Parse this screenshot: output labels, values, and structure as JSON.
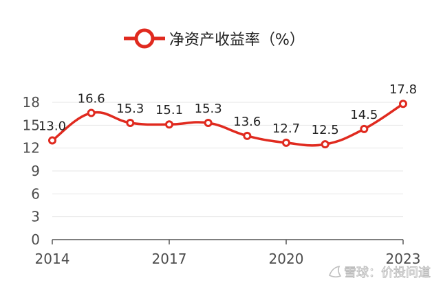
{
  "chart_data": {
    "type": "line",
    "legend_label": "净资产收益率（%）",
    "legend_position": "top-center",
    "x": [
      2014,
      2015,
      2016,
      2017,
      2018,
      2019,
      2020,
      2021,
      2022,
      2023
    ],
    "x_tick_labels": [
      "2014",
      "2017",
      "2020",
      "2023"
    ],
    "x_tick_values": [
      2014,
      2017,
      2020,
      2023
    ],
    "series": [
      {
        "name": "净资产收益率（%）",
        "values": [
          13.0,
          16.6,
          15.3,
          15.1,
          15.3,
          13.6,
          12.7,
          12.5,
          14.5,
          17.8
        ],
        "labels": [
          "13.0",
          "16.6",
          "15.3",
          "15.1",
          "15.3",
          "13.6",
          "12.7",
          "12.5",
          "14.5",
          "17.8"
        ]
      }
    ],
    "y_ticks": [
      0,
      3,
      6,
      9,
      12,
      15,
      18
    ],
    "ylim": [
      0,
      18
    ],
    "grid": true,
    "colors": {
      "series": "#e02a1f",
      "grid": "#e6e6e6",
      "axis": "#555555",
      "text": "#222222",
      "tick_text": "#4d4d4d"
    }
  },
  "watermark": "雪球：价投问道"
}
